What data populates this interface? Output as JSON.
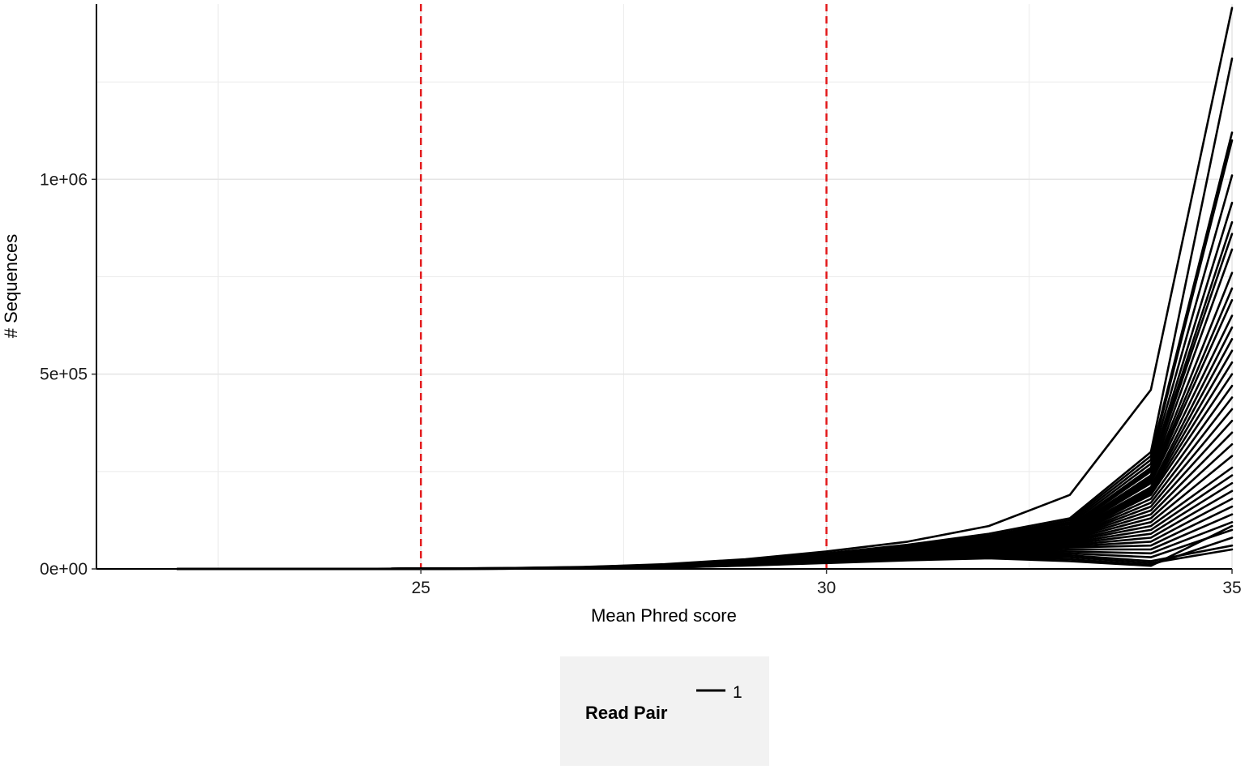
{
  "chart_data": {
    "type": "line",
    "title": "",
    "xlabel": "Mean Phred score",
    "ylabel": "# Sequences",
    "xlim": [
      21,
      35
    ],
    "ylim": [
      0,
      1450000
    ],
    "x_ticks": [
      25,
      30,
      35
    ],
    "x_tick_labels": [
      "25",
      "30",
      "35"
    ],
    "y_ticks": [
      0,
      500000,
      1000000
    ],
    "y_tick_labels": [
      "0e+00",
      "5e+05",
      "1e+06"
    ],
    "x_minor_gridlines": [
      22.5,
      27.5,
      32.5
    ],
    "y_minor_gridlines": [
      250000,
      750000,
      1250000
    ],
    "grid": true,
    "reference_lines": [
      {
        "axis": "x",
        "value": 25,
        "style": "dashed",
        "color": "#e31a1c"
      },
      {
        "axis": "x",
        "value": 30,
        "style": "dashed",
        "color": "#e31a1c"
      }
    ],
    "line_color": "#000000",
    "legend": {
      "title": "Read Pair",
      "position": "bottom",
      "entries": [
        {
          "label": "1",
          "color": "#000000"
        }
      ]
    },
    "x": [
      22,
      23,
      24,
      25,
      26,
      27,
      28,
      29,
      30,
      31,
      32,
      33,
      34,
      35
    ],
    "series": [
      {
        "values": [
          0,
          0,
          0,
          1000,
          2000,
          5000,
          12000,
          25000,
          45000,
          70000,
          110000,
          190000,
          460000,
          1440000
        ]
      },
      {
        "values": [
          0,
          0,
          0,
          900,
          1800,
          4500,
          11000,
          22000,
          40000,
          62000,
          90000,
          130000,
          300000,
          1310000
        ]
      },
      {
        "values": [
          0,
          0,
          0,
          900,
          1700,
          4200,
          10500,
          21000,
          38000,
          60000,
          85000,
          125000,
          290000,
          1120000
        ]
      },
      {
        "values": [
          0,
          0,
          0,
          850,
          1650,
          4000,
          10000,
          20000,
          37000,
          58000,
          82000,
          120000,
          280000,
          1100000
        ]
      },
      {
        "values": [
          0,
          0,
          0,
          800,
          1600,
          3900,
          9800,
          19500,
          36000,
          56000,
          80000,
          115000,
          270000,
          1010000
        ]
      },
      {
        "values": [
          0,
          0,
          0,
          800,
          1550,
          3800,
          9500,
          19000,
          35000,
          55000,
          78000,
          110000,
          260000,
          940000
        ]
      },
      {
        "values": [
          0,
          0,
          0,
          750,
          1500,
          3700,
          9200,
          18500,
          34000,
          54000,
          76000,
          108000,
          255000,
          890000
        ]
      },
      {
        "values": [
          0,
          0,
          0,
          750,
          1500,
          3600,
          9000,
          18000,
          33000,
          53000,
          75000,
          105000,
          250000,
          860000
        ]
      },
      {
        "values": [
          0,
          0,
          0,
          700,
          1450,
          3500,
          8800,
          17500,
          32000,
          52000,
          74000,
          102000,
          240000,
          820000
        ]
      },
      {
        "values": [
          0,
          0,
          0,
          700,
          1400,
          3400,
          8600,
          17000,
          31000,
          51000,
          72000,
          100000,
          235000,
          760000
        ]
      },
      {
        "values": [
          0,
          0,
          0,
          700,
          1400,
          3300,
          8400,
          16800,
          30500,
          50000,
          71000,
          98000,
          230000,
          720000
        ]
      },
      {
        "values": [
          0,
          0,
          0,
          650,
          1350,
          3200,
          8200,
          16500,
          30000,
          49000,
          70000,
          96000,
          225000,
          690000
        ]
      },
      {
        "values": [
          0,
          0,
          0,
          650,
          1300,
          3100,
          8000,
          16000,
          29500,
          48000,
          69000,
          95000,
          220000,
          650000
        ]
      },
      {
        "values": [
          0,
          0,
          0,
          650,
          1300,
          3000,
          7800,
          15800,
          29000,
          47000,
          68000,
          93000,
          210000,
          620000
        ]
      },
      {
        "values": [
          0,
          0,
          0,
          600,
          1250,
          2900,
          7600,
          15500,
          28500,
          46000,
          67000,
          92000,
          205000,
          590000
        ]
      },
      {
        "values": [
          0,
          0,
          0,
          600,
          1200,
          2800,
          7400,
          15200,
          28000,
          45000,
          66000,
          90000,
          200000,
          560000
        ]
      },
      {
        "values": [
          0,
          0,
          0,
          600,
          1200,
          2700,
          7200,
          15000,
          27500,
          44000,
          65000,
          88000,
          195000,
          530000
        ]
      },
      {
        "values": [
          0,
          0,
          0,
          550,
          1150,
          2600,
          7000,
          14700,
          27000,
          43000,
          64000,
          86000,
          190000,
          500000
        ]
      },
      {
        "values": [
          0,
          0,
          0,
          550,
          1100,
          2500,
          6800,
          14500,
          26500,
          42000,
          63000,
          85000,
          180000,
          470000
        ]
      },
      {
        "values": [
          0,
          0,
          0,
          550,
          1100,
          2450,
          6600,
          14200,
          26000,
          41000,
          62000,
          83000,
          170000,
          440000
        ]
      },
      {
        "values": [
          0,
          0,
          0,
          500,
          1050,
          2400,
          6400,
          14000,
          25500,
          40000,
          61000,
          82000,
          160000,
          410000
        ]
      },
      {
        "values": [
          0,
          0,
          0,
          500,
          1000,
          2350,
          6200,
          13700,
          25000,
          39000,
          60000,
          80000,
          150000,
          380000
        ]
      },
      {
        "values": [
          0,
          0,
          0,
          500,
          1000,
          2300,
          6000,
          13500,
          24500,
          38000,
          58000,
          78000,
          140000,
          350000
        ]
      },
      {
        "values": [
          0,
          0,
          0,
          450,
          950,
          2250,
          5800,
          13200,
          24000,
          37000,
          56000,
          75000,
          130000,
          320000
        ]
      },
      {
        "values": [
          0,
          0,
          0,
          450,
          900,
          2200,
          5600,
          13000,
          23500,
          36000,
          54000,
          72000,
          120000,
          290000
        ]
      },
      {
        "values": [
          0,
          0,
          0,
          450,
          900,
          2150,
          5400,
          12700,
          23000,
          35000,
          52000,
          70000,
          110000,
          260000
        ]
      },
      {
        "values": [
          0,
          0,
          0,
          400,
          850,
          2100,
          5200,
          12500,
          22500,
          34000,
          50000,
          67000,
          100000,
          240000
        ]
      },
      {
        "values": [
          0,
          0,
          0,
          400,
          800,
          2050,
          5000,
          12200,
          22000,
          33000,
          48000,
          64000,
          90000,
          220000
        ]
      },
      {
        "values": [
          0,
          0,
          0,
          400,
          800,
          2000,
          4800,
          12000,
          21500,
          32000,
          46000,
          61000,
          80000,
          200000
        ]
      },
      {
        "values": [
          0,
          0,
          0,
          350,
          750,
          1950,
          4600,
          11700,
          21000,
          31000,
          44000,
          58000,
          70000,
          180000
        ]
      },
      {
        "values": [
          0,
          0,
          0,
          350,
          700,
          1900,
          4400,
          11500,
          20500,
          30000,
          42000,
          55000,
          60000,
          160000
        ]
      },
      {
        "values": [
          0,
          0,
          0,
          350,
          700,
          1850,
          4200,
          11200,
          20000,
          29000,
          40000,
          50000,
          50000,
          140000
        ]
      },
      {
        "values": [
          0,
          0,
          0,
          300,
          650,
          1800,
          4000,
          11000,
          19500,
          28000,
          38000,
          45000,
          40000,
          120000
        ]
      },
      {
        "values": [
          0,
          0,
          0,
          300,
          600,
          1700,
          3800,
          10500,
          19000,
          27000,
          36000,
          40000,
          30000,
          100000
        ]
      },
      {
        "values": [
          0,
          0,
          0,
          300,
          600,
          1600,
          3600,
          10000,
          18000,
          26000,
          34000,
          35000,
          20000,
          60000
        ]
      },
      {
        "values": [
          0,
          0,
          0,
          250,
          550,
          1500,
          3400,
          9500,
          17000,
          25000,
          32000,
          30000,
          15000,
          50000
        ]
      },
      {
        "values": [
          0,
          0,
          0,
          250,
          500,
          1400,
          3200,
          9000,
          16000,
          24000,
          30000,
          25000,
          10000,
          80000
        ]
      },
      {
        "values": [
          0,
          0,
          0,
          200,
          450,
          1300,
          3000,
          8500,
          15000,
          22000,
          27000,
          20000,
          8000,
          110000
        ]
      }
    ]
  }
}
